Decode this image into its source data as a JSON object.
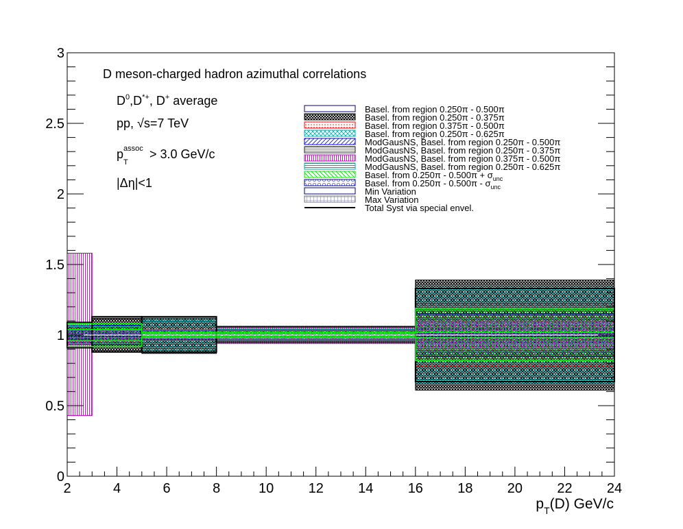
{
  "chart_data": {
    "type": "area",
    "title": "D meson-charged hadron azimuthal correlations",
    "annotations": {
      "line1_main": "D",
      "line1_sup_a": "0",
      "line1_sep": ",D",
      "line1_sup_b": "*+",
      "line1_sep2": ", D",
      "line1_sup_c": "+",
      "line1_tail": " average",
      "line2_main": "pp, ",
      "line2_sqrt": "√",
      "line2_tail": "s=7 TeV",
      "line3_p": "p",
      "line3_sub": "T",
      "line3_sup": "assoc",
      "line3_tail": " > 3.0 GeV/c",
      "line4": "|Δη|<1"
    },
    "xlabel_main": "p",
    "xlabel_sub": "T",
    "xlabel_tail": "(D) GeV/c",
    "xlim": [
      2,
      24
    ],
    "ylim": [
      0,
      3
    ],
    "x_ticks": [
      "2",
      "4",
      "6",
      "8",
      "10",
      "12",
      "14",
      "16",
      "18",
      "20",
      "22",
      "24"
    ],
    "y_ticks": [
      "0",
      "0.5",
      "1",
      "1.5",
      "2",
      "2.5",
      "3"
    ],
    "bins": [
      [
        2,
        3
      ],
      [
        3,
        5
      ],
      [
        5,
        8
      ],
      [
        8,
        16
      ],
      [
        16,
        24
      ]
    ],
    "series": [
      {
        "name": "Basel. from region 0.250π - 0.500π",
        "color": "#000080",
        "pattern": "plain",
        "low": [
          0.98,
          0.98,
          0.99,
          0.99,
          0.96
        ],
        "high": [
          1.02,
          1.02,
          1.01,
          1.01,
          1.04
        ]
      },
      {
        "name": "Basel. from region 0.250π - 0.375π",
        "color": "#000000",
        "pattern": "dense",
        "low": [
          0.93,
          0.88,
          0.87,
          0.96,
          0.61
        ],
        "high": [
          1.07,
          1.12,
          1.12,
          1.04,
          1.39
        ]
      },
      {
        "name": "Basel. from region 0.375π - 0.500π",
        "color": "#ff0000",
        "pattern": "dots",
        "low": [
          0.95,
          0.95,
          0.96,
          0.97,
          0.78
        ],
        "high": [
          1.05,
          1.05,
          1.04,
          1.03,
          1.22
        ]
      },
      {
        "name": "Basel. from region 0.250π - 0.625π",
        "color": "#00bbbb",
        "pattern": "cross",
        "low": [
          0.93,
          0.93,
          0.88,
          0.96,
          0.66
        ],
        "high": [
          1.07,
          1.07,
          1.12,
          1.04,
          1.34
        ]
      },
      {
        "name": "ModGausNS, Basel. from region 0.250π - 0.500π",
        "color": "#0000ff",
        "pattern": "diag",
        "low": [
          0.97,
          0.97,
          0.98,
          0.98,
          0.95
        ],
        "high": [
          1.03,
          1.03,
          1.02,
          1.02,
          1.05
        ]
      },
      {
        "name": "ModGausNS, Basel. from region 0.250π - 0.375π",
        "color": "#222222",
        "pattern": "horiz",
        "low": [
          0.92,
          0.89,
          0.88,
          0.95,
          0.63
        ],
        "high": [
          1.08,
          1.11,
          1.12,
          1.05,
          1.37
        ]
      },
      {
        "name": "ModGausNS, Basel. from region 0.375π - 0.500π",
        "color": "#c000c0",
        "pattern": "vert",
        "low": [
          0.43,
          0.96,
          0.97,
          0.94,
          0.9
        ],
        "high": [
          1.58,
          1.04,
          1.03,
          1.06,
          1.1
        ]
      },
      {
        "name": "ModGausNS, Basel. from region 0.250π - 0.625π",
        "color": "#00aaaa",
        "pattern": "horiz",
        "low": [
          0.94,
          0.94,
          0.9,
          0.96,
          0.68
        ],
        "high": [
          1.06,
          1.06,
          1.1,
          1.04,
          1.32
        ]
      },
      {
        "name": "Basel. from 0.250π - 0.500π + σ_unc",
        "color": "#00ee00",
        "pattern": "hatch",
        "low": [
          0.96,
          0.92,
          0.98,
          0.98,
          0.82
        ],
        "high": [
          1.04,
          1.08,
          1.02,
          1.02,
          1.18
        ]
      },
      {
        "name": "Basel. from 0.250π - 0.500π - σ_unc",
        "color": "#0000aa",
        "pattern": "circles",
        "low": [
          0.97,
          0.93,
          0.97,
          0.97,
          0.85
        ],
        "high": [
          1.03,
          1.07,
          1.03,
          1.03,
          1.15
        ]
      },
      {
        "name": "Min Variation",
        "color": "#000080",
        "pattern": "plain",
        "low": [
          0.99,
          0.99,
          0.99,
          0.99,
          0.99
        ],
        "high": [
          1.01,
          1.01,
          1.01,
          1.01,
          1.01
        ]
      },
      {
        "name": "Max Variation",
        "color": "#777777",
        "pattern": "grid",
        "low": [
          0.96,
          0.96,
          0.96,
          0.97,
          0.9
        ],
        "high": [
          1.04,
          1.04,
          1.04,
          1.03,
          1.1
        ]
      },
      {
        "name": "Total Syst via special envel.",
        "color": "#000000",
        "pattern": "outline",
        "low": [
          0.91,
          0.88,
          0.88,
          0.95,
          0.67
        ],
        "high": [
          1.09,
          1.13,
          1.13,
          1.06,
          1.33
        ]
      }
    ],
    "green_band": {
      "low": [
        0.92,
        0.92,
        0.98,
        0.98,
        0.82
      ],
      "high": [
        1.08,
        1.08,
        1.02,
        1.02,
        1.19
      ],
      "low2": [
        0.96,
        0.96,
        0.99,
        0.99,
        0.98
      ],
      "high2": [
        1.04,
        1.04,
        1.01,
        1.01,
        1.02
      ]
    },
    "legend_placement": "top-right",
    "grid": false
  }
}
